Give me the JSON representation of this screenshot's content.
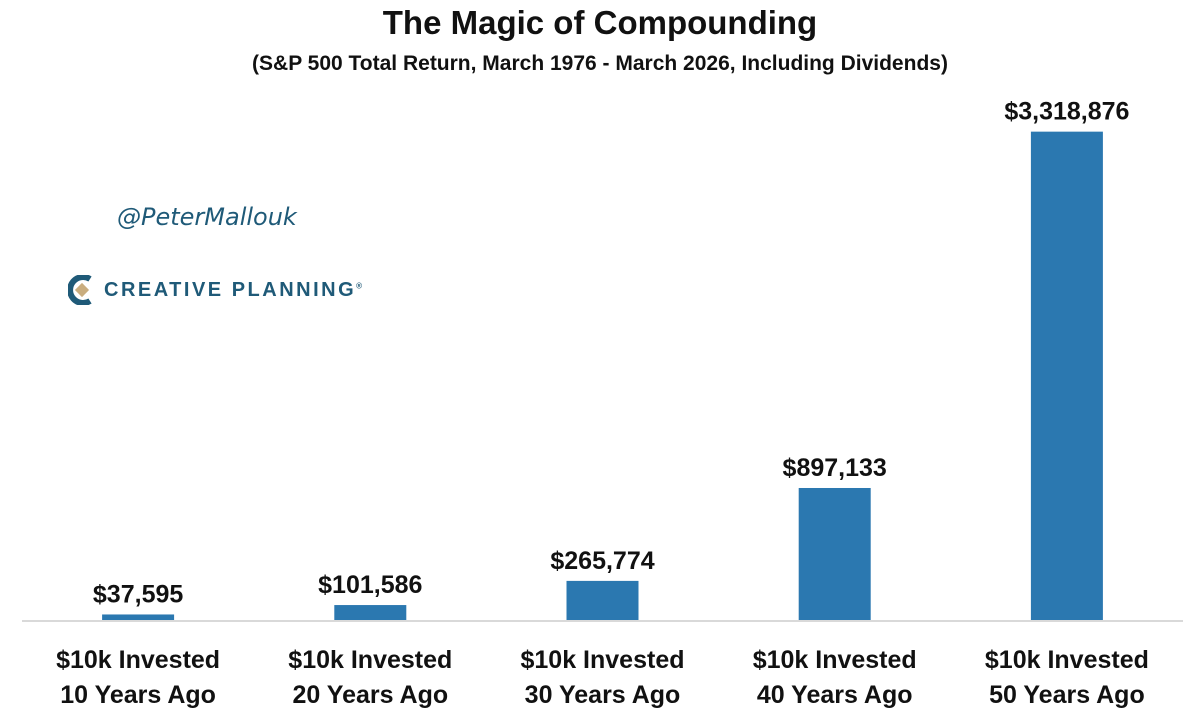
{
  "chart_data": {
    "type": "bar",
    "title": "The Magic of Compounding",
    "subtitle": "(S&P 500 Total Return, March 1976 - March 2026, Including Dividends)",
    "categories": [
      [
        "$10k Invested",
        "10 Years Ago"
      ],
      [
        "$10k Invested",
        "20 Years Ago"
      ],
      [
        "$10k Invested",
        "30 Years Ago"
      ],
      [
        "$10k Invested",
        "40 Years Ago"
      ],
      [
        "$10k Invested",
        "50 Years Ago"
      ]
    ],
    "values": [
      37595,
      101586,
      265774,
      897133,
      3318876
    ],
    "data_labels": [
      "$37,595",
      "$101,586",
      "$265,774",
      "$897,133",
      "$3,318,876"
    ],
    "ylim": [
      0,
      3500000
    ],
    "grid": false,
    "legend": "none",
    "bar_color": "#2b78b0",
    "axis_color": "#d9d9d9"
  },
  "branding": {
    "handle": "@PeterMallouk",
    "logo_text": "CREATIVE PLANNING",
    "logo_mark": "®"
  }
}
